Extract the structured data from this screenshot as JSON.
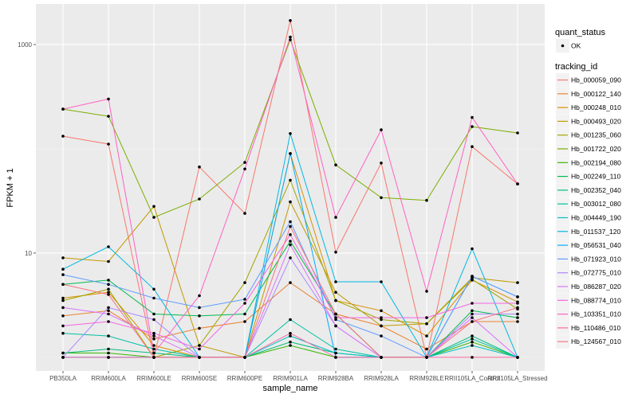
{
  "chart_data": {
    "type": "line",
    "title": "",
    "xlabel": "sample_name",
    "ylabel": "FPKM + 1",
    "yscale": "log10",
    "ylim": [
      0.74,
      2450
    ],
    "yticks": [
      10,
      1000
    ],
    "ytick_labels": [
      "10",
      "1000"
    ],
    "grid": true,
    "legend_position": "right",
    "categories": [
      "PB350LA",
      "RRIM600LA",
      "RRIM600LE",
      "RRIM600SE",
      "RRIM600PE",
      "RRIM901LA",
      "RRIM928BA",
      "RRIM928LA",
      "RRIM928LE",
      "RRII105LA_Control",
      "RRII105LA_Stressed"
    ],
    "point_legend": {
      "title": "quant_status",
      "entries": [
        "OK"
      ]
    },
    "line_legend_title": "tracking_id",
    "series": [
      {
        "name": "Hb_000059_090",
        "color": "#F8766D",
        "values": [
          132,
          111,
          1.0,
          67,
          24,
          1700,
          10.2,
          73,
          1.0,
          105,
          46
        ]
      },
      {
        "name": "Hb_000122_140",
        "color": "#EA8331",
        "values": [
          2.5,
          2.8,
          1.5,
          1.9,
          2.2,
          5.2,
          2.6,
          2.0,
          1.2,
          2.2,
          2.2
        ]
      },
      {
        "name": "Hb_000248_010",
        "color": "#D89000",
        "values": [
          3.7,
          4.2,
          1.3,
          1.0,
          1.0,
          90,
          3.5,
          2.8,
          1.6,
          5.5,
          3.4
        ]
      },
      {
        "name": "Hb_000493_020",
        "color": "#C09B00",
        "values": [
          9.0,
          8.3,
          28,
          1.3,
          1.0,
          31,
          4.2,
          2.0,
          2.1,
          5.8,
          5.2
        ]
      },
      {
        "name": "Hb_001235_060",
        "color": "#A3A500",
        "values": [
          3.5,
          4.5,
          1.0,
          1.3,
          5.2,
          50,
          3.5,
          2.3,
          2.1,
          5.6,
          2.9
        ]
      },
      {
        "name": "Hb_001722_020",
        "color": "#7CAE00",
        "values": [
          240,
          205,
          22,
          33,
          74,
          1110,
          70,
          34,
          32,
          163,
          142
        ]
      },
      {
        "name": "Hb_002194_080",
        "color": "#39B600",
        "values": [
          1.1,
          1.1,
          1.0,
          1.0,
          1.0,
          1.3,
          1.0,
          1.0,
          1.0,
          1.4,
          1.0
        ]
      },
      {
        "name": "Hb_002249_110",
        "color": "#00BB4E",
        "values": [
          5.0,
          5.5,
          2.6,
          2.5,
          2.6,
          13,
          2.6,
          1.0,
          1.0,
          2.8,
          2.4
        ]
      },
      {
        "name": "Hb_002352_040",
        "color": "#00BF7D",
        "values": [
          1.1,
          1.2,
          1.1,
          1.0,
          1.0,
          1.4,
          1.1,
          1.0,
          1.0,
          1.6,
          1.0
        ]
      },
      {
        "name": "Hb_003012_080",
        "color": "#00C1A3",
        "values": [
          1.7,
          1.6,
          1.2,
          1.0,
          1.0,
          2.3,
          1.2,
          1.0,
          1.0,
          1.5,
          1.0
        ]
      },
      {
        "name": "Hb_004449_190",
        "color": "#00BFC4",
        "values": [
          1.0,
          1.0,
          1.0,
          1.0,
          1.0,
          1.6,
          1.1,
          1.0,
          1.0,
          1.3,
          1.0
        ]
      },
      {
        "name": "Hb_011537_120",
        "color": "#00B9E3",
        "values": [
          7.0,
          11.5,
          4.5,
          1.0,
          1.0,
          140,
          5.3,
          5.3,
          1.0,
          11,
          1.0
        ]
      },
      {
        "name": "Hb_056531_040",
        "color": "#00ADFA",
        "values": [
          1.0,
          1.0,
          1.0,
          1.0,
          1.0,
          90,
          1.0,
          1.0,
          1.0,
          6.0,
          3.8
        ]
      },
      {
        "name": "Hb_071923_010",
        "color": "#619CFF",
        "values": [
          6.2,
          5.0,
          3.7,
          3.0,
          3.6,
          20,
          2.3,
          1.6,
          1.0,
          6.0,
          3.8
        ]
      },
      {
        "name": "Hb_072775_010",
        "color": "#AE87FF",
        "values": [
          1.0,
          3.0,
          2.3,
          1.0,
          1.0,
          9.0,
          2.0,
          1.0,
          1.0,
          2.6,
          2.6
        ]
      },
      {
        "name": "Hb_086287_020",
        "color": "#DB72FB",
        "values": [
          3.0,
          2.6,
          1.6,
          1.0,
          1.0,
          12,
          2.0,
          1.0,
          1.0,
          2.4,
          1.0
        ]
      },
      {
        "name": "Hb_088774_010",
        "color": "#F564E3",
        "values": [
          2.0,
          2.2,
          1.7,
          1.2,
          3.3,
          15,
          2.4,
          2.4,
          2.4,
          3.3,
          3.3
        ]
      },
      {
        "name": "Hb_103351_010",
        "color": "#FF61C3",
        "values": [
          240,
          300,
          1.1,
          3.9,
          64,
          1180,
          22,
          152,
          4.3,
          200,
          46
        ]
      },
      {
        "name": "Hb_110486_010",
        "color": "#FF67A4",
        "values": [
          1.0,
          1.0,
          1.0,
          1.0,
          1.0,
          1.7,
          1.0,
          1.0,
          1.0,
          1.0,
          1.0
        ]
      },
      {
        "name": "Hb_124567_010",
        "color": "#FC717F",
        "values": [
          5.0,
          4.0,
          1.0,
          1.0,
          1.0,
          18,
          2.6,
          1.0,
          1.0,
          2.2,
          3.0
        ]
      }
    ]
  }
}
